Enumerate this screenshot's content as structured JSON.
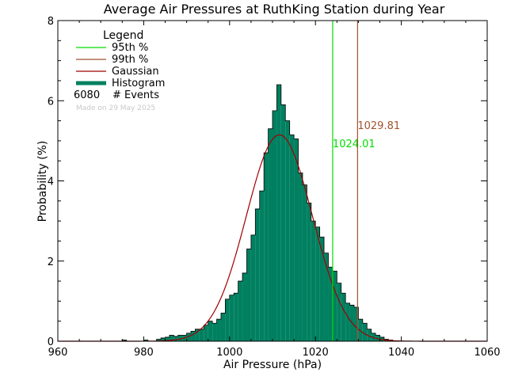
{
  "chart_data": {
    "type": "bar",
    "title": "Average Air Pressures at RuthKing Station during Year",
    "xlabel": "Air Pressure (hPa)",
    "ylabel": "Probability (%)",
    "xlim": [
      960,
      1060
    ],
    "ylim": [
      0,
      8
    ],
    "x_ticks": [
      "960",
      "980",
      "1000",
      "1020",
      "1040",
      "1060"
    ],
    "y_ticks": [
      "0",
      "2",
      "4",
      "6",
      "8"
    ],
    "grid": false,
    "legend": {
      "title": "Legend",
      "position": "top-left",
      "items": [
        {
          "label": "95th %",
          "color": "#00dd00",
          "kind": "line"
        },
        {
          "label": "99th %",
          "color": "#a0522d",
          "kind": "line"
        },
        {
          "label": "Gaussian",
          "color": "#a00000",
          "kind": "line"
        },
        {
          "label": "Histogram",
          "color": "#008060",
          "kind": "bar"
        }
      ],
      "events_count": "6080",
      "events_label": "# Events"
    },
    "footnote": "Made on 29 May 2025",
    "percentiles": [
      {
        "name": "95th %",
        "value": 1024.01,
        "label": "1024.01",
        "color": "#00dd00"
      },
      {
        "name": "99th %",
        "value": 1029.81,
        "label": "1029.81",
        "color": "#a0522d"
      }
    ],
    "gaussian": {
      "mean": 1011.6,
      "sigma": 7.7,
      "peak": 5.15,
      "color": "#a00000"
    },
    "histogram": {
      "bin_width": 1,
      "fill_color": "#008060",
      "edge_color": "#000000",
      "bins": [
        [
          975,
          0.03
        ],
        [
          980,
          0.03
        ],
        [
          983,
          0.05
        ],
        [
          984,
          0.08
        ],
        [
          985,
          0.1
        ],
        [
          986,
          0.15
        ],
        [
          987,
          0.12
        ],
        [
          988,
          0.15
        ],
        [
          989,
          0.15
        ],
        [
          990,
          0.2
        ],
        [
          991,
          0.25
        ],
        [
          992,
          0.3
        ],
        [
          993,
          0.3
        ],
        [
          994,
          0.4
        ],
        [
          995,
          0.5
        ],
        [
          996,
          0.45
        ],
        [
          997,
          0.55
        ],
        [
          998,
          0.7
        ],
        [
          999,
          1.05
        ],
        [
          1000,
          1.15
        ],
        [
          1001,
          1.2
        ],
        [
          1002,
          1.5
        ],
        [
          1003,
          1.7
        ],
        [
          1004,
          2.3
        ],
        [
          1005,
          2.65
        ],
        [
          1006,
          3.3
        ],
        [
          1007,
          3.75
        ],
        [
          1008,
          4.7
        ],
        [
          1009,
          5.3
        ],
        [
          1010,
          5.75
        ],
        [
          1011,
          6.4
        ],
        [
          1012,
          5.9
        ],
        [
          1013,
          5.5
        ],
        [
          1014,
          5.15
        ],
        [
          1015,
          5.05
        ],
        [
          1016,
          4.2
        ],
        [
          1017,
          3.9
        ],
        [
          1018,
          3.45
        ],
        [
          1019,
          3.0
        ],
        [
          1020,
          2.85
        ],
        [
          1021,
          2.6
        ],
        [
          1022,
          2.2
        ],
        [
          1023,
          1.85
        ],
        [
          1024,
          1.75
        ],
        [
          1025,
          1.45
        ],
        [
          1026,
          1.2
        ],
        [
          1027,
          0.95
        ],
        [
          1028,
          0.9
        ],
        [
          1029,
          0.85
        ],
        [
          1030,
          0.55
        ],
        [
          1031,
          0.45
        ],
        [
          1032,
          0.3
        ],
        [
          1033,
          0.2
        ],
        [
          1034,
          0.15
        ],
        [
          1035,
          0.1
        ],
        [
          1036,
          0.05
        ],
        [
          1037,
          0.03
        ]
      ]
    }
  }
}
